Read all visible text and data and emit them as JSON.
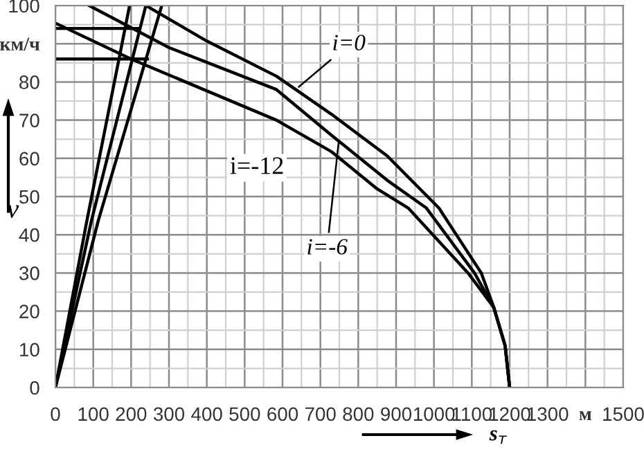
{
  "chart_data": {
    "type": "line",
    "xlabel": "s$_{т}$",
    "ylabel": "v",
    "series": [
      {
        "color": "#000000",
        "x": [
          239,
          400,
          584,
          730,
          877,
          1013,
          1125,
          1158,
          1188,
          1200
        ],
        "values": [
          100,
          90.7,
          81.5,
          71.5,
          60.6,
          47,
          30,
          21,
          11,
          0
        ]
      },
      {
        "color": "#000000",
        "x": [
          89,
          300,
          584,
          730,
          880,
          980,
          1107,
          1158,
          1188,
          1200
        ],
        "values": [
          100,
          89,
          78,
          66,
          54,
          47,
          30,
          21,
          11,
          0
        ]
      },
      {
        "color": "#000000",
        "x": [
          0,
          200,
          584,
          730,
          850,
          932,
          1090,
          1158,
          1188,
          1200
        ],
        "values": [
          95.4,
          86,
          70,
          61.7,
          52,
          47,
          30,
          21,
          11,
          0
        ]
      },
      {
        "color": "#000000",
        "x": [
          0,
          83,
          196
        ],
        "values": [
          0,
          43.6,
          100
        ]
      },
      {
        "color": "#000000",
        "x": [
          0,
          95,
          239
        ],
        "values": [
          0,
          43.6,
          100
        ]
      },
      {
        "color": "#000000",
        "x": [
          0,
          113,
          281
        ],
        "values": [
          0,
          43.6,
          100
        ]
      },
      {
        "color": "#000000",
        "x": [
          0,
          217
        ],
        "values": [
          94,
          94
        ]
      },
      {
        "color": "#000000",
        "x": [
          0,
          243
        ],
        "values": [
          86,
          86
        ]
      }
    ],
    "annotations": [
      {
        "text": "i=0",
        "x": 643,
        "y": 78.7
      },
      {
        "text": "i=-6",
        "x": 748,
        "y": 64
      },
      "i=-12"
    ],
    "xlim": [
      0,
      1500
    ],
    "ylim": [
      0,
      100
    ],
    "xticks": [
      0,
      100,
      200,
      300,
      400,
      500,
      600,
      700,
      800,
      900,
      1000,
      1100,
      1200,
      1300,
      {
        "value": 1400,
        "label": "м"
      },
      1500
    ],
    "yticks": [
      0,
      10,
      20,
      30,
      40,
      50,
      60,
      70,
      80,
      {
        "value": 90,
        "label": "км/ч"
      },
      100
    ],
    "grid": true,
    "marker": "none",
    "line_style": "solid",
    "legend": false
  }
}
